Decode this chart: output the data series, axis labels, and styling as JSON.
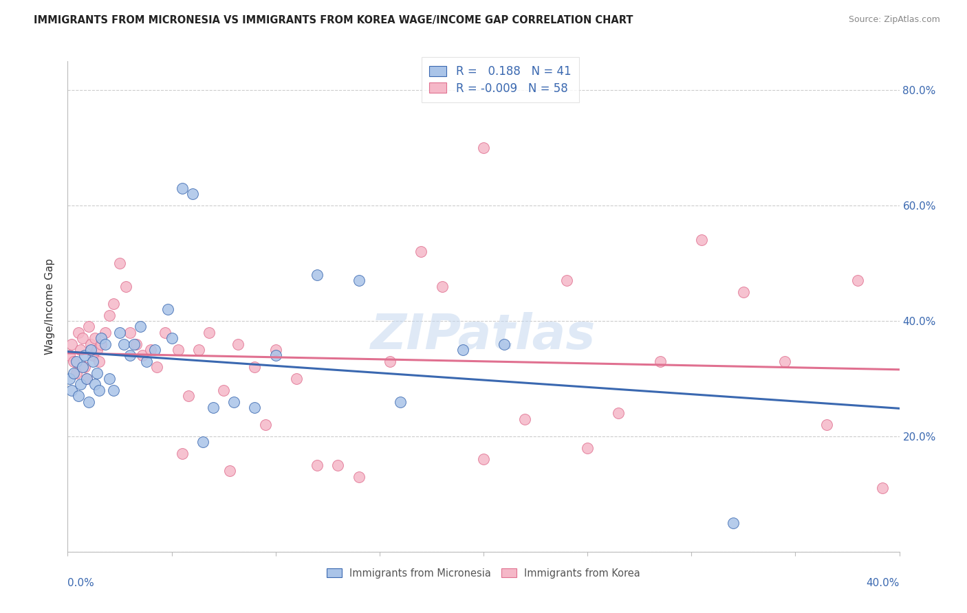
{
  "title": "IMMIGRANTS FROM MICRONESIA VS IMMIGRANTS FROM KOREA WAGE/INCOME GAP CORRELATION CHART",
  "source": "Source: ZipAtlas.com",
  "ylabel": "Wage/Income Gap",
  "xmin": 0.0,
  "xmax": 0.4,
  "ymin": 0.0,
  "ymax": 0.85,
  "watermark": "ZIPatlas",
  "blue_R": 0.188,
  "blue_N": 41,
  "pink_R": -0.009,
  "pink_N": 58,
  "blue_color": "#aac4e8",
  "pink_color": "#f5b8c8",
  "blue_line_color": "#3a68b0",
  "pink_line_color": "#e07090",
  "grid_color": "#cccccc",
  "background_color": "#ffffff",
  "right_yticks": [
    0.0,
    0.2,
    0.4,
    0.6,
    0.8
  ],
  "right_ylabels": [
    "",
    "20.0%",
    "40.0%",
    "60.0%",
    "80.0%"
  ],
  "blue_x": [
    0.001,
    0.002,
    0.003,
    0.004,
    0.005,
    0.006,
    0.007,
    0.008,
    0.009,
    0.01,
    0.011,
    0.012,
    0.013,
    0.014,
    0.015,
    0.016,
    0.018,
    0.02,
    0.022,
    0.025,
    0.027,
    0.03,
    0.032,
    0.035,
    0.038,
    0.042,
    0.048,
    0.05,
    0.055,
    0.06,
    0.065,
    0.07,
    0.08,
    0.09,
    0.1,
    0.12,
    0.14,
    0.16,
    0.19,
    0.21,
    0.32
  ],
  "blue_y": [
    0.3,
    0.28,
    0.31,
    0.33,
    0.27,
    0.29,
    0.32,
    0.34,
    0.3,
    0.26,
    0.35,
    0.33,
    0.29,
    0.31,
    0.28,
    0.37,
    0.36,
    0.3,
    0.28,
    0.38,
    0.36,
    0.34,
    0.36,
    0.39,
    0.33,
    0.35,
    0.42,
    0.37,
    0.63,
    0.62,
    0.19,
    0.25,
    0.26,
    0.25,
    0.34,
    0.48,
    0.47,
    0.26,
    0.35,
    0.36,
    0.05
  ],
  "pink_x": [
    0.001,
    0.002,
    0.003,
    0.004,
    0.005,
    0.006,
    0.007,
    0.008,
    0.009,
    0.01,
    0.011,
    0.012,
    0.013,
    0.014,
    0.015,
    0.016,
    0.018,
    0.02,
    0.022,
    0.025,
    0.028,
    0.03,
    0.033,
    0.036,
    0.04,
    0.043,
    0.047,
    0.053,
    0.058,
    0.063,
    0.068,
    0.075,
    0.082,
    0.09,
    0.1,
    0.11,
    0.13,
    0.155,
    0.18,
    0.2,
    0.22,
    0.24,
    0.265,
    0.285,
    0.305,
    0.325,
    0.345,
    0.365,
    0.38,
    0.392,
    0.2,
    0.25,
    0.17,
    0.14,
    0.12,
    0.095,
    0.078,
    0.055
  ],
  "pink_y": [
    0.34,
    0.36,
    0.33,
    0.31,
    0.38,
    0.35,
    0.37,
    0.32,
    0.3,
    0.39,
    0.36,
    0.34,
    0.37,
    0.35,
    0.33,
    0.36,
    0.38,
    0.41,
    0.43,
    0.5,
    0.46,
    0.38,
    0.36,
    0.34,
    0.35,
    0.32,
    0.38,
    0.35,
    0.27,
    0.35,
    0.38,
    0.28,
    0.36,
    0.32,
    0.35,
    0.3,
    0.15,
    0.33,
    0.46,
    0.16,
    0.23,
    0.47,
    0.24,
    0.33,
    0.54,
    0.45,
    0.33,
    0.22,
    0.47,
    0.11,
    0.7,
    0.18,
    0.52,
    0.13,
    0.15,
    0.22,
    0.14,
    0.17
  ]
}
